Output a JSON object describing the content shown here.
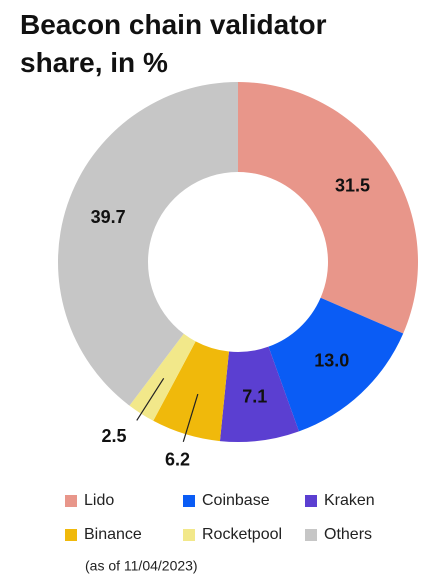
{
  "chart_data": {
    "type": "donut",
    "title": "Beacon chain validator share, in %",
    "categories": [
      "Lido",
      "Coinbase",
      "Kraken",
      "Binance",
      "Rocketpool",
      "Others"
    ],
    "values": [
      31.5,
      13.0,
      7.1,
      6.2,
      2.5,
      39.7
    ],
    "value_labels": [
      "31.5",
      "13.0",
      "7.1",
      "6.2",
      "2.5",
      "39.7"
    ],
    "colors": [
      "#e8968a",
      "#0a5cf5",
      "#5b3fd1",
      "#f0b90b",
      "#f2e88a",
      "#c6c6c6"
    ],
    "note": "(as of 11/04/2023)"
  }
}
